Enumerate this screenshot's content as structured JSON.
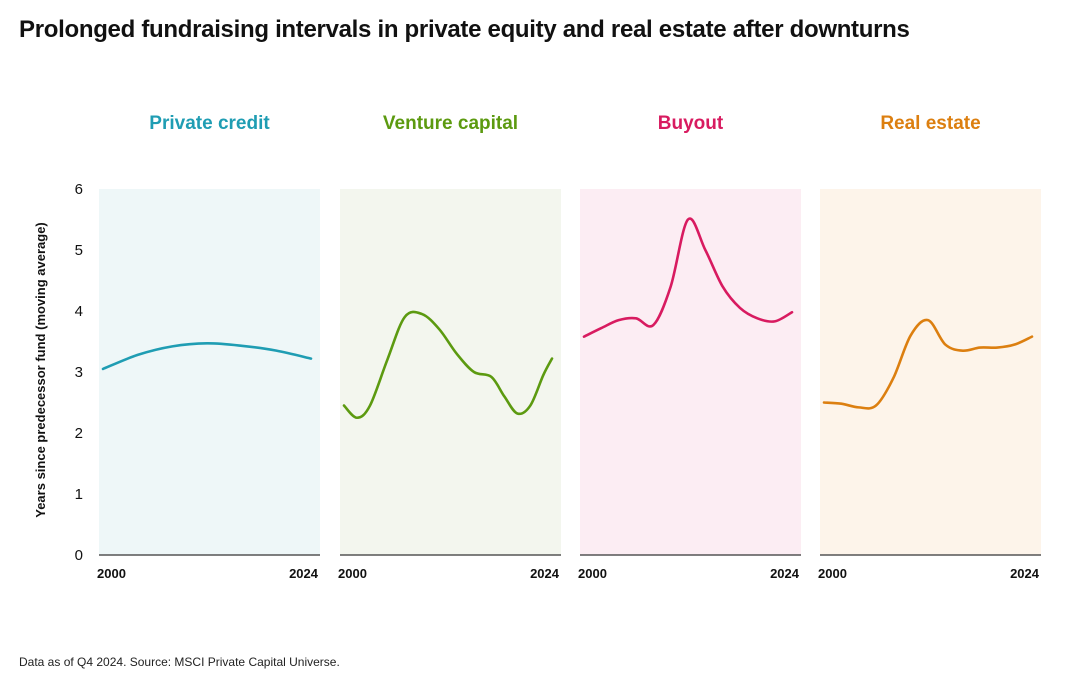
{
  "title": "Prolonged fundraising intervals in private equity and real estate after downturns",
  "footnote": "Data as of Q4 2024. Source: MSCI Private Capital Universe.",
  "chart_data": {
    "type": "line",
    "ylabel": "Years since predecessor fund (moving average)",
    "ylim": [
      0,
      6
    ],
    "yticks": [
      "0",
      "1",
      "2",
      "3",
      "4",
      "5",
      "6"
    ],
    "xlim": [
      2000,
      2024
    ],
    "xtick_labels": [
      "2000",
      "2024"
    ],
    "grid": false,
    "panels": [
      {
        "name": "Private credit",
        "color": "#1f9db3",
        "bg": "#eef7f8",
        "x": [
          2000,
          2004,
          2008,
          2012,
          2016,
          2020,
          2024
        ],
        "y": [
          3.05,
          3.28,
          3.42,
          3.47,
          3.43,
          3.35,
          3.22
        ]
      },
      {
        "name": "Venture capital",
        "color": "#5c9a10",
        "bg": "#f3f6ee",
        "x": [
          2000,
          2001.5,
          2003,
          2005,
          2007,
          2009,
          2011,
          2013,
          2015,
          2017,
          2018.5,
          2020,
          2021.5,
          2023,
          2024
        ],
        "y": [
          2.45,
          2.25,
          2.45,
          3.2,
          3.9,
          3.95,
          3.7,
          3.3,
          3.0,
          2.92,
          2.6,
          2.32,
          2.45,
          2.95,
          3.22
        ]
      },
      {
        "name": "Buyout",
        "color": "#d81b60",
        "bg": "#fcedf3",
        "x": [
          2000,
          2002,
          2004,
          2006,
          2008,
          2010,
          2012,
          2014,
          2016,
          2018,
          2020,
          2022,
          2024
        ],
        "y": [
          3.58,
          3.72,
          3.85,
          3.88,
          3.77,
          4.4,
          5.5,
          5.0,
          4.4,
          4.05,
          3.88,
          3.83,
          3.98
        ]
      },
      {
        "name": "Real estate",
        "color": "#dc7f10",
        "bg": "#fdf4ea",
        "x": [
          2000,
          2002,
          2004,
          2006,
          2008,
          2010,
          2012,
          2014,
          2016,
          2018,
          2020,
          2022,
          2024
        ],
        "y": [
          2.5,
          2.48,
          2.42,
          2.45,
          2.9,
          3.6,
          3.85,
          3.45,
          3.35,
          3.4,
          3.4,
          3.45,
          3.58
        ]
      }
    ]
  }
}
